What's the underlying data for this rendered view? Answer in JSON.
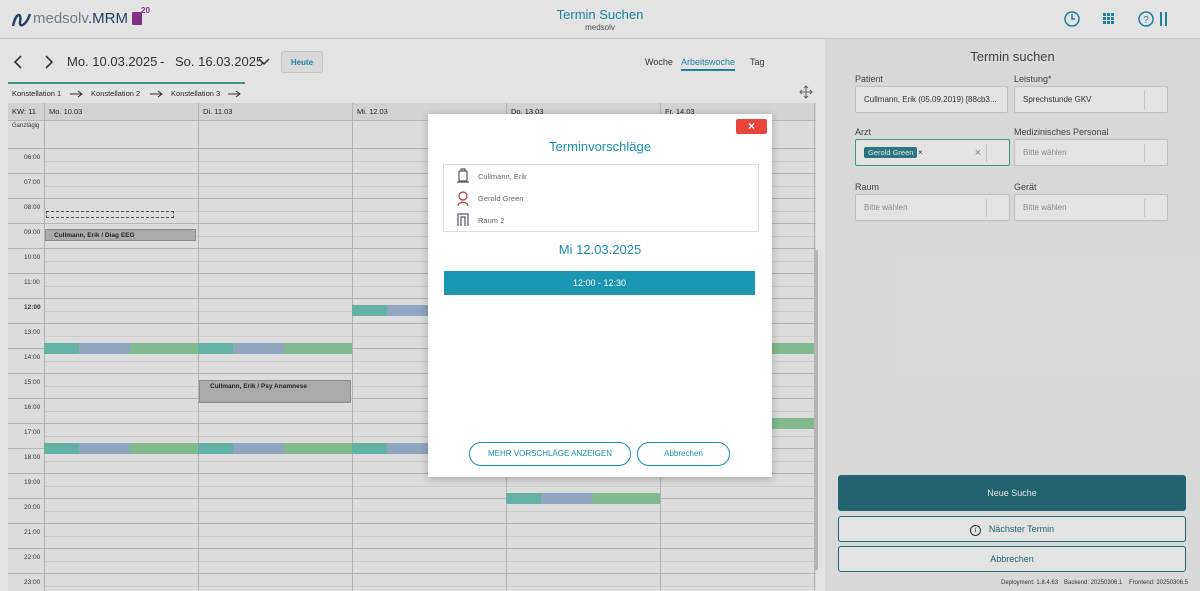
{
  "header": {
    "logo_main": "medsolv",
    "logo_accent": ".MRM",
    "badge": "20",
    "title": "Termin Suchen",
    "subtitle": "medsolv"
  },
  "toolbar": {
    "date_from": "Mo. 10.03.2025",
    "separator": "-",
    "date_to": "So. 16.03.2025",
    "today_button": "Heute",
    "views": [
      "Woche",
      "Arbeitswoche",
      "Tag"
    ]
  },
  "constellations": [
    "Konstellation 1",
    "Konstellation 2",
    "Konstellation 3"
  ],
  "calendar": {
    "week_label": "KW: 11",
    "days": [
      "Mo. 10.03",
      "Di. 11.03",
      "Mi. 12.03",
      "Do. 13.03",
      "Fr. 14.03"
    ],
    "all_day": "Ganztägig",
    "hours": [
      "06:00",
      "07:00",
      "08:00",
      "09:00",
      "10:00",
      "11:00",
      "12:00",
      "13:00",
      "14:00",
      "15:00",
      "16:00",
      "17:00",
      "18:00",
      "19:00",
      "20:00",
      "21:00",
      "22:00",
      "23:00"
    ],
    "events": [
      "Cullmann, Erik / Diag EEG",
      "Cullmann, Erik / Psy Anamnese"
    ]
  },
  "search_panel": {
    "title": "Termin suchen",
    "patient_label": "Patient",
    "patient_value": "Cullmann, Erik (05.09.2019) [88cb3...",
    "service_label": "Leistung*",
    "service_value": "Sprechstunde GKV",
    "doctor_label": "Arzt",
    "doctor_value": "Gerold Green",
    "staff_label": "Medizinisches Personal",
    "staff_value": "Bitte wählen",
    "room_label": "Raum",
    "room_value": "Bitte wählen",
    "device_label": "Gerät",
    "device_value": "Bitte wählen",
    "new_search": "Neue Suche",
    "next_appointment": "Nächster Termin",
    "cancel": "Abbrechen"
  },
  "footer": {
    "deployment": "Deployment: 1.8.4.63",
    "backend": "Backend: 20250306.1",
    "frontend": "Frontend: 20250306.5"
  },
  "modal": {
    "close": "×",
    "title": "Terminvorschläge",
    "resources": [
      "Cullmann, Erik",
      "Gerold Green",
      "Raum 2"
    ],
    "date": "Mi 12.03.2025",
    "slot": "12:00 - 12:30",
    "more_button": "MEHR VORSCHLÄGE ANZEIGEN",
    "cancel_button": "Abbrechen"
  }
}
